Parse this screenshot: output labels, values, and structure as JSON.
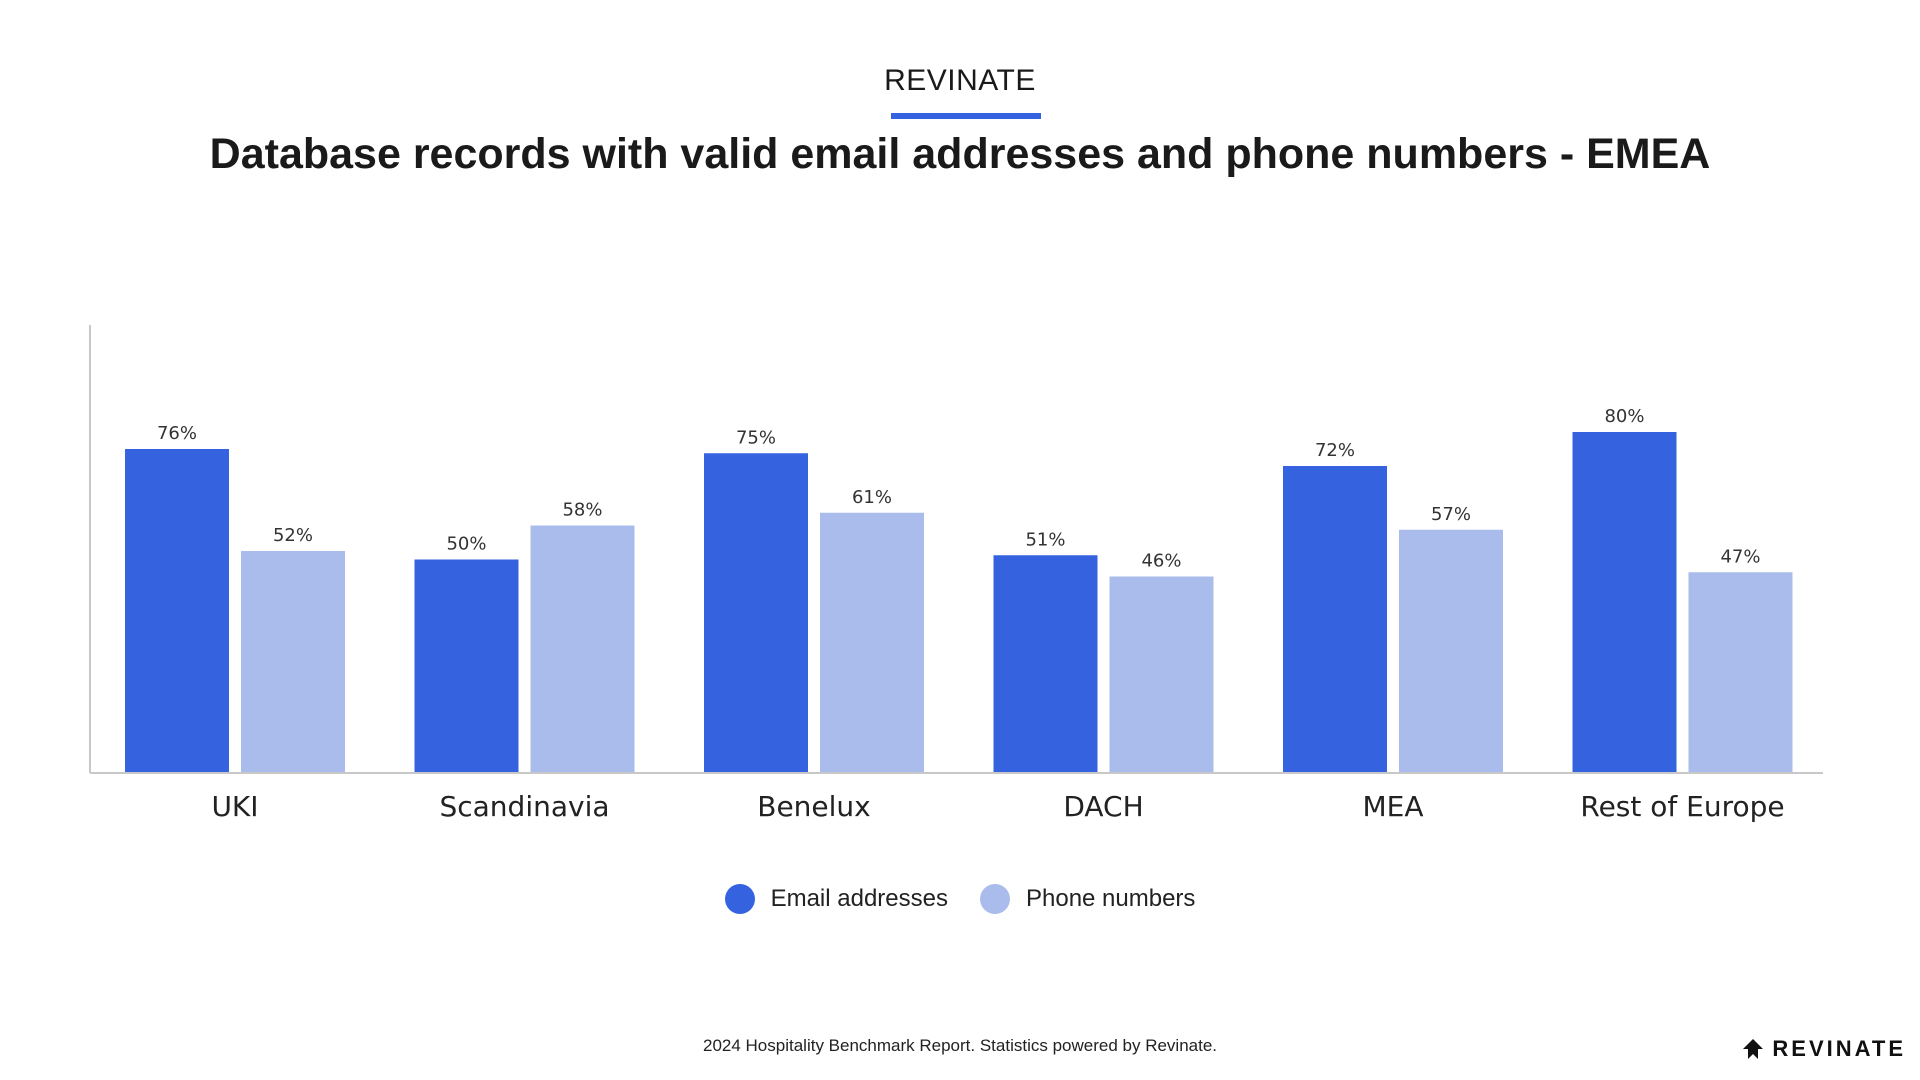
{
  "header": {
    "brand": "REVINATE",
    "title": "Database records with valid email addresses and phone numbers - EMEA"
  },
  "colors": {
    "email": "#3563e0",
    "phone": "#aabcec",
    "axis": "#c8c8c8",
    "underline": "#3563e0"
  },
  "chart_data": {
    "type": "bar",
    "categories": [
      "UKI",
      "Scandinavia",
      "Benelux",
      "DACH",
      "MEA",
      "Rest of Europe"
    ],
    "series": [
      {
        "name": "Email addresses",
        "values": [
          76,
          50,
          75,
          51,
          72,
          80
        ],
        "labels": [
          "76%",
          "50%",
          "75%",
          "51%",
          "72%",
          "80%"
        ]
      },
      {
        "name": "Phone numbers",
        "values": [
          52,
          58,
          61,
          46,
          57,
          47
        ],
        "labels": [
          "52%",
          "58%",
          "61%",
          "46%",
          "57%",
          "47%"
        ]
      }
    ],
    "unit": "%",
    "ylim": [
      0,
      100
    ],
    "grid": false,
    "legend_position": "bottom-center"
  },
  "legend": {
    "email_label": "Email addresses",
    "phone_label": "Phone numbers"
  },
  "footer": {
    "note": "2024 Hospitality Benchmark Report. Statistics powered by Revinate.",
    "logo_text": "REVINATE",
    "logo_icon": "revinate-logo-icon"
  }
}
